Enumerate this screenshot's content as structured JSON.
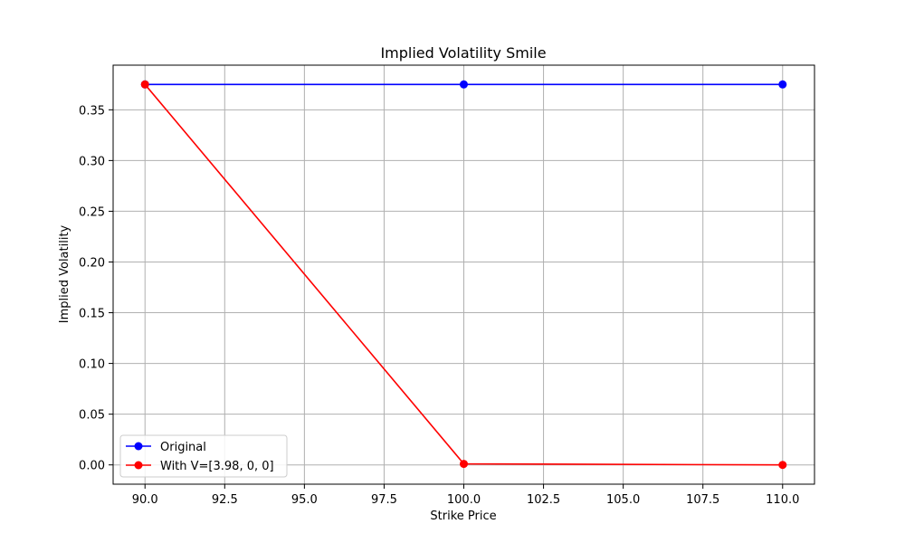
{
  "chart_data": {
    "type": "line",
    "title": "Implied Volatility Smile",
    "xlabel": "Strike Price",
    "ylabel": "Implied Volatility",
    "x": [
      90,
      100,
      110
    ],
    "series": [
      {
        "name": "Original",
        "values": [
          0.375,
          0.375,
          0.375
        ],
        "color": "#0000ff"
      },
      {
        "name": "With V=[3.98, 0, 0]",
        "values": [
          0.375,
          0.001,
          0.0
        ],
        "color": "#ff0000"
      }
    ],
    "xlim": [
      89.0,
      111.0
    ],
    "ylim": [
      -0.019,
      0.394
    ],
    "xticks": [
      90.0,
      92.5,
      95.0,
      97.5,
      100.0,
      102.5,
      105.0,
      107.5,
      110.0
    ],
    "xtick_labels": [
      "90.0",
      "92.5",
      "95.0",
      "97.5",
      "100.0",
      "102.5",
      "105.0",
      "107.5",
      "110.0"
    ],
    "yticks": [
      0.0,
      0.05,
      0.1,
      0.15,
      0.2,
      0.25,
      0.3,
      0.35
    ],
    "ytick_labels": [
      "0.00",
      "0.05",
      "0.10",
      "0.15",
      "0.20",
      "0.25",
      "0.30",
      "0.35"
    ],
    "grid": true,
    "legend_position": "lower-left"
  }
}
